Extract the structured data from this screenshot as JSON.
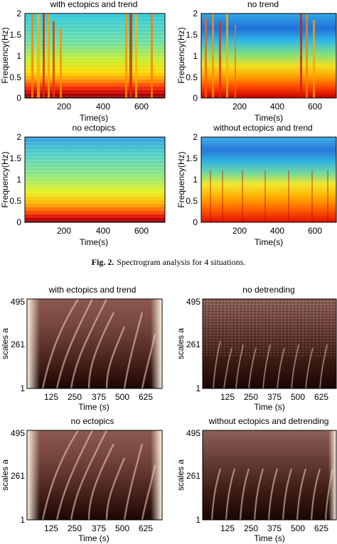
{
  "figure2": {
    "caption_label": "Fig. 2.",
    "caption_text": "Spectrogram analysis for 4 situations.",
    "panels": [
      {
        "title": "with ectopics and trend",
        "ylabel": "Frequency(Hz)",
        "xlabel": "Time(s)"
      },
      {
        "title": "no trend",
        "ylabel": "Frequency(Hz)",
        "xlabel": "Time(s)"
      },
      {
        "title": "no ectopics",
        "ylabel": "Frequency(Hz)",
        "xlabel": "Time(s)"
      },
      {
        "title": "without ectopics and trend",
        "ylabel": "Frequency(Hz)",
        "xlabel": "Time(s)"
      }
    ],
    "y_ticks": [
      "2",
      "1.5",
      "1",
      "0.5",
      "0"
    ],
    "x_ticks": [
      "200",
      "400",
      "600"
    ]
  },
  "figure3": {
    "panels": [
      {
        "title": "with ectopics and trend",
        "ylabel": "scales a",
        "xlabel": "Time (s)"
      },
      {
        "title": "no detrending",
        "ylabel": "scales a",
        "xlabel": "Time (s)"
      },
      {
        "title": "no ectopics",
        "ylabel": "scales a",
        "xlabel": "Time (s)"
      },
      {
        "title": "without ectopics and detrending",
        "ylabel": "scales a",
        "xlabel": "Time (s)"
      }
    ],
    "y_ticks": [
      "495",
      "261",
      "1"
    ],
    "x_ticks": [
      "125",
      "250",
      "375",
      "500",
      "625"
    ]
  },
  "colors": {
    "spectro_hot": "#c00000",
    "spectro_cold": "#2060d0",
    "scalogram_dark": "#2a0e0a",
    "scalogram_light": "#f6ecd8"
  },
  "chart_data": [
    {
      "type": "heatmap",
      "title": "with ectopics and trend",
      "xlabel": "Time(s)",
      "ylabel": "Frequency(Hz)",
      "xlim": [
        0,
        720
      ],
      "ylim": [
        0,
        2
      ],
      "x_ticks": [
        200,
        400,
        600
      ],
      "y_ticks": [
        0,
        0.5,
        1,
        1.5,
        2
      ]
    },
    {
      "type": "heatmap",
      "title": "no trend",
      "xlabel": "Time(s)",
      "ylabel": "Frequency(Hz)",
      "xlim": [
        0,
        720
      ],
      "ylim": [
        0,
        2
      ],
      "x_ticks": [
        200,
        400,
        600
      ],
      "y_ticks": [
        0,
        0.5,
        1,
        1.5,
        2
      ]
    },
    {
      "type": "heatmap",
      "title": "no ectopics",
      "xlabel": "Time(s)",
      "ylabel": "Frequency(Hz)",
      "xlim": [
        0,
        720
      ],
      "ylim": [
        0,
        2
      ],
      "x_ticks": [
        200,
        400,
        600
      ],
      "y_ticks": [
        0,
        0.5,
        1,
        1.5,
        2
      ]
    },
    {
      "type": "heatmap",
      "title": "without ectopics and trend",
      "xlabel": "Time(s)",
      "ylabel": "Frequency(Hz)",
      "xlim": [
        0,
        720
      ],
      "ylim": [
        0,
        2
      ],
      "x_ticks": [
        200,
        400,
        600
      ],
      "y_ticks": [
        0,
        0.5,
        1,
        1.5,
        2
      ]
    },
    {
      "type": "heatmap",
      "title": "with ectopics and trend",
      "xlabel": "Time (s)",
      "ylabel": "scales a",
      "xlim": [
        0,
        700
      ],
      "ylim": [
        1,
        495
      ],
      "x_ticks": [
        125,
        250,
        375,
        500,
        625
      ],
      "y_ticks": [
        1,
        261,
        495
      ]
    },
    {
      "type": "heatmap",
      "title": "no detrending",
      "xlabel": "Time (s)",
      "ylabel": "scales a",
      "xlim": [
        0,
        700
      ],
      "ylim": [
        1,
        495
      ],
      "x_ticks": [
        125,
        250,
        375,
        500,
        625
      ],
      "y_ticks": [
        1,
        261,
        495
      ]
    },
    {
      "type": "heatmap",
      "title": "no ectopics",
      "xlabel": "Time (s)",
      "ylabel": "scales a",
      "xlim": [
        0,
        700
      ],
      "ylim": [
        1,
        495
      ],
      "x_ticks": [
        125,
        250,
        375,
        500,
        625
      ],
      "y_ticks": [
        1,
        261,
        495
      ]
    },
    {
      "type": "heatmap",
      "title": "without ectopics and detrending",
      "xlabel": "Time (s)",
      "ylabel": "scales a",
      "xlim": [
        0,
        700
      ],
      "ylim": [
        1,
        495
      ],
      "x_ticks": [
        125,
        250,
        375,
        500,
        625
      ],
      "y_ticks": [
        1,
        261,
        495
      ]
    }
  ]
}
